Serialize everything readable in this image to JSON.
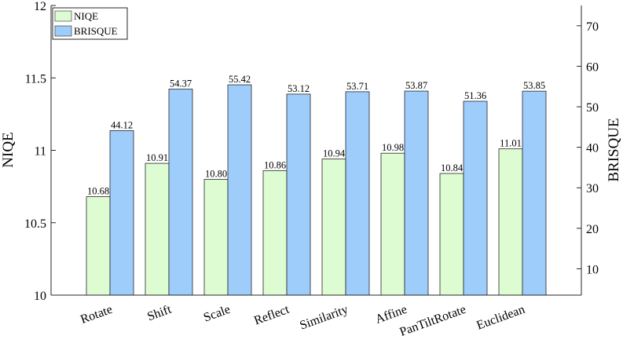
{
  "chart_data": {
    "type": "bar",
    "title": "",
    "categories": [
      "Rotate",
      "Shift",
      "Scale",
      "Reflect",
      "Similarity",
      "Affine",
      "PanTiltRotate",
      "Euclidean"
    ],
    "series": [
      {
        "name": "NIQE",
        "axis": "left",
        "color": "#ddfcd2",
        "values": [
          10.68,
          10.91,
          10.8,
          10.86,
          10.94,
          10.98,
          10.84,
          11.01
        ],
        "labels": [
          "10.68",
          "10.91",
          "10.80",
          "10.86",
          "10.94",
          "10.98",
          "10.84",
          "11.01"
        ]
      },
      {
        "name": "BRISQUE",
        "axis": "right",
        "color": "#9fcdfb",
        "values": [
          44.12,
          54.37,
          55.42,
          53.12,
          53.71,
          53.87,
          51.36,
          53.85
        ],
        "labels": [
          "44.12",
          "54.37",
          "55.42",
          "53.12",
          "53.71",
          "53.87",
          "51.36",
          "53.85"
        ]
      }
    ],
    "left_axis": {
      "label": "NIQE",
      "ylim": [
        10,
        12
      ],
      "ticks": [
        10,
        10.5,
        11,
        11.5,
        12
      ],
      "tick_labels": [
        "10",
        "10.5",
        "11",
        "11.5",
        "12"
      ]
    },
    "right_axis": {
      "label": "BRISQUE",
      "ylim": [
        3.5,
        75
      ],
      "ticks": [
        10,
        20,
        30,
        40,
        50,
        60,
        70
      ],
      "tick_labels": [
        "10",
        "20",
        "30",
        "40",
        "50",
        "60",
        "70"
      ]
    },
    "grid": false,
    "legend_position": "top-left"
  }
}
